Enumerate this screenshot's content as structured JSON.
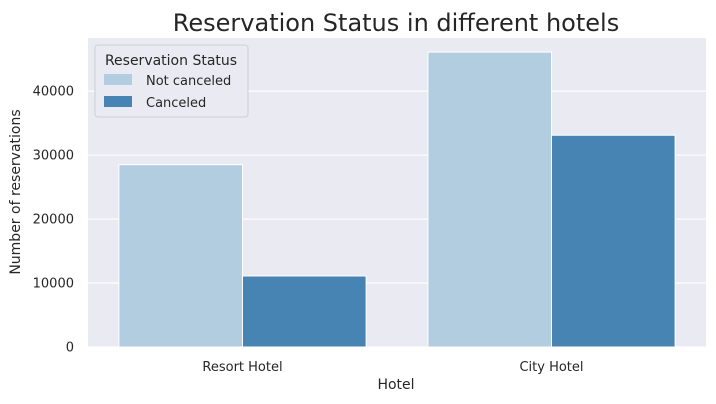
{
  "chart_data": {
    "type": "bar",
    "title": "Reservation Status in different hotels",
    "xlabel": "Hotel",
    "ylabel": "Number of reservations",
    "categories": [
      "Resort Hotel",
      "City Hotel"
    ],
    "series": [
      {
        "name": "Not canceled",
        "values": [
          28500,
          46100
        ],
        "color": "#b3cde0"
      },
      {
        "name": "Canceled",
        "values": [
          11100,
          33100
        ],
        "color": "#4884b3"
      }
    ],
    "ylim": [
      0,
      48300
    ],
    "yticks": [
      0,
      10000,
      20000,
      30000,
      40000
    ],
    "ytick_labels": [
      "0",
      "10000",
      "20000",
      "30000",
      "40000"
    ],
    "grid": true,
    "legend": {
      "title": "Reservation Status",
      "position": "top-left"
    },
    "colors": {
      "plot_background": "#eaeaf2",
      "grid": "#ffffff",
      "text": "#262626"
    }
  }
}
